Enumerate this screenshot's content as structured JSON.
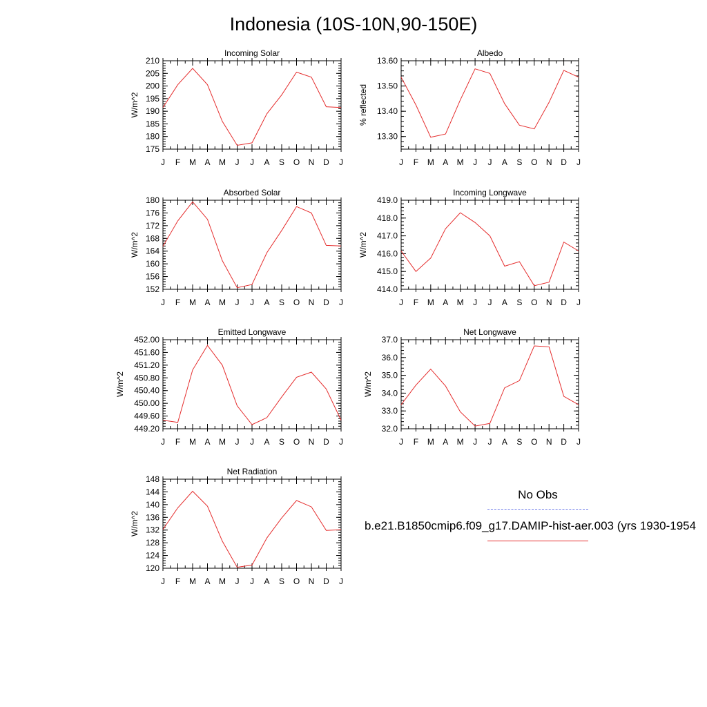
{
  "title": "Indonesia (10S-10N,90-150E)",
  "months": [
    "J",
    "F",
    "M",
    "A",
    "M",
    "J",
    "J",
    "A",
    "S",
    "O",
    "N",
    "D",
    "J"
  ],
  "colors": {
    "model": "#e52d2d",
    "obs": "#6a78ea",
    "axis": "#000000"
  },
  "legend": {
    "obs_label": "No Obs",
    "model_label": "b.e21.B1850cmip6.f09_g17.DAMIP-hist-aer.003 (yrs 1930-1954"
  },
  "chart_data": [
    {
      "type": "line",
      "title": "Incoming Solar",
      "ylabel": "W/m^2",
      "ylim": [
        175,
        210
      ],
      "yticks": [
        "175",
        "180",
        "185",
        "190",
        "195",
        "200",
        "205",
        "210"
      ],
      "series": [
        {
          "values": [
            191.5,
            200.5,
            207,
            200.5,
            186,
            176.5,
            177.5,
            189,
            196.5,
            205.5,
            203.5,
            191.8,
            191.5
          ]
        }
      ]
    },
    {
      "type": "line",
      "title": "Albedo",
      "ylabel": "% reflected",
      "ylim": [
        13.25,
        13.6
      ],
      "yticks": [
        "13.30",
        "13.40",
        "13.50",
        "13.60"
      ],
      "series": [
        {
          "values": [
            13.535,
            13.425,
            13.297,
            13.31,
            13.445,
            13.568,
            13.55,
            13.43,
            13.345,
            13.33,
            13.435,
            13.562,
            13.535
          ]
        }
      ]
    },
    {
      "type": "line",
      "title": "Absorbed Solar",
      "ylabel": "W/m^2",
      "ylim": [
        152,
        180
      ],
      "yticks": [
        "152",
        "156",
        "160",
        "164",
        "168",
        "172",
        "176",
        "180"
      ],
      "series": [
        {
          "values": [
            165.5,
            173.5,
            179.5,
            174,
            161,
            152.5,
            153.5,
            163.5,
            170.5,
            178,
            176,
            165.8,
            165.6
          ]
        }
      ]
    },
    {
      "type": "line",
      "title": "Incoming Longwave",
      "ylabel": "W/m^2",
      "ylim": [
        414,
        419
      ],
      "yticks": [
        "414.0",
        "415.0",
        "416.0",
        "417.0",
        "418.0",
        "419.0"
      ],
      "series": [
        {
          "values": [
            416.15,
            415.0,
            415.75,
            417.4,
            418.3,
            417.75,
            417.0,
            415.3,
            415.55,
            414.2,
            414.4,
            416.65,
            416.15
          ]
        }
      ]
    },
    {
      "type": "line",
      "title": "Emitted Longwave",
      "ylabel": "W/m^2",
      "ylim": [
        449.2,
        452.0
      ],
      "yticks": [
        "449.20",
        "449.60",
        "450.00",
        "450.40",
        "450.80",
        "451.20",
        "451.60",
        "452.00"
      ],
      "series": [
        {
          "values": [
            449.47,
            449.4,
            451.05,
            451.82,
            451.2,
            449.92,
            449.33,
            449.55,
            450.2,
            450.82,
            450.98,
            450.45,
            449.47
          ]
        }
      ]
    },
    {
      "type": "line",
      "title": "Net Longwave",
      "ylabel": "W/m^2",
      "ylim": [
        32,
        37
      ],
      "yticks": [
        "32.0",
        "33.0",
        "34.0",
        "35.0",
        "36.0",
        "37.0"
      ],
      "series": [
        {
          "values": [
            33.35,
            34.45,
            35.35,
            34.4,
            32.95,
            32.15,
            32.3,
            34.3,
            34.7,
            36.65,
            36.6,
            33.82,
            33.35
          ]
        }
      ]
    },
    {
      "type": "line",
      "title": "Net Radiation",
      "ylabel": "W/m^2",
      "ylim": [
        120,
        148
      ],
      "yticks": [
        "120",
        "124",
        "128",
        "132",
        "136",
        "140",
        "144",
        "148"
      ],
      "series": [
        {
          "values": [
            132.2,
            139,
            144.2,
            139.5,
            128.5,
            120.3,
            121,
            129.5,
            135.8,
            141.3,
            139.3,
            131.9,
            132.1
          ]
        }
      ]
    }
  ]
}
